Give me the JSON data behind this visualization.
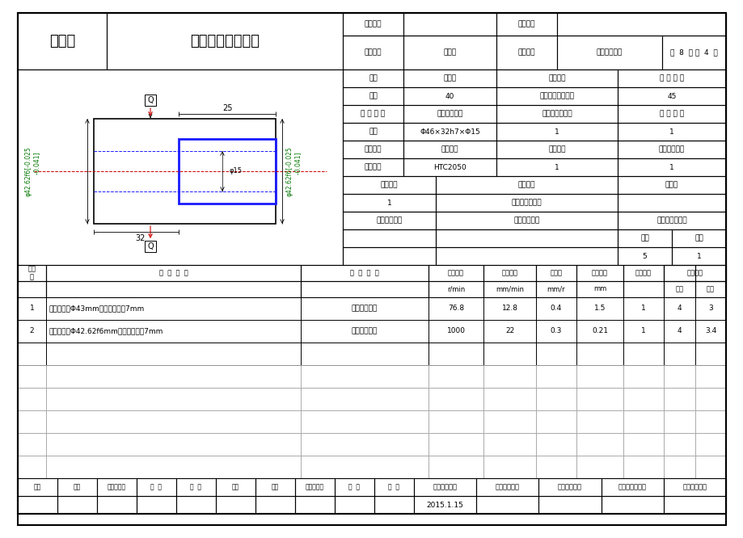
{
  "title": "机械加工工序卡片",
  "process_label": "工序四",
  "product_type_label": "产品型号",
  "part_num_label": "零件图号",
  "product_name_label": "产品名称",
  "product_name": "齿轮泵",
  "part_name_label": "零件名称",
  "part_name": "从动齿轮坯料",
  "page_info": "共  8  页 第  4  页",
  "workshop_label": "车间",
  "process_num_label": "工序号",
  "process_name_label": "工序名称",
  "material_label": "材 料 牌 号",
  "workshop": "金工",
  "process_number": "40",
  "process_name": "加工齿轮右端外型",
  "material": "45",
  "blank_type_label": "毛 坯 种 类",
  "blank_size_label": "毛坯外形尺寸",
  "blank_qty_label": "每毛坯可制件数",
  "per_machine_label": "每 台 件 数",
  "blank_type": "锻件",
  "blank_size": "Φ46×32h7×Φ15",
  "blank_qty": "1",
  "per_machine": "1",
  "equip_name_label": "设备名称",
  "equip_model_label": "设备型号",
  "equip_num_label": "设备编号",
  "simul_label": "同时加工件数",
  "equip_name": "立式车床",
  "equip_model": "HTC2050",
  "equip_num": "1",
  "simul": "1",
  "fixture_num_label": "夹具编号",
  "fixture_name_label": "夹具名称",
  "coolant_label": "切削液",
  "fixture_num": "1",
  "fixture_name": "四爪自定心卡盘",
  "tool_num_label": "工位器具编号",
  "tool_name_label": "工位器具名称",
  "time_label": "工序工时（分）",
  "prep_label": "准终",
  "unit_label": "单件",
  "prep_val": "5",
  "unit_val": "1",
  "step_rows": [
    {
      "step": "1",
      "content": "粗车外圆至Φ43mm，长度大约为7mm",
      "equipment": "气动弹性夹具",
      "spindle": "76.8",
      "cut_speed": "12.8",
      "feed": "0.4",
      "depth": "1.5",
      "feed_times": "1",
      "mach_time": "4",
      "assist_time": "3"
    },
    {
      "step": "2",
      "content": "精车外圆至Φ42.62f6mm，长度大约为7mm",
      "equipment": "气动弹性夹具",
      "spindle": "1000",
      "cut_speed": "22",
      "feed": "0.3",
      "depth": "0.21",
      "feed_times": "1",
      "mach_time": "4",
      "assist_time": "3.4"
    }
  ],
  "footer_sign_labels": [
    "设计（日期）",
    "校对（日期）",
    "审核（日期）",
    "标准化（日期）",
    "会签（日期）"
  ],
  "footer_date": "2015.1.15",
  "revision_labels": [
    "标记",
    "处数",
    "更改文件号",
    "签  字",
    "日  期",
    "标记",
    "处数",
    "更改文件号",
    "签  字",
    "日  期"
  ],
  "lc": "#000000",
  "llc": "#aaaaaa",
  "blc": "#1a1aff",
  "rlc": "#cc0000",
  "gtc": "#007700",
  "bg": "#ffffff",
  "draw_top_label": "Q",
  "draw_bot_label": "Q",
  "dim_25": "25",
  "dim_32": "32",
  "dim_phi15": "φ15",
  "dim_phi42_left": "φ42.62f6[-0.025\n        -0.041]",
  "dim_phi42_right": "φ42.62f6[-0.025\n         -0.041]"
}
